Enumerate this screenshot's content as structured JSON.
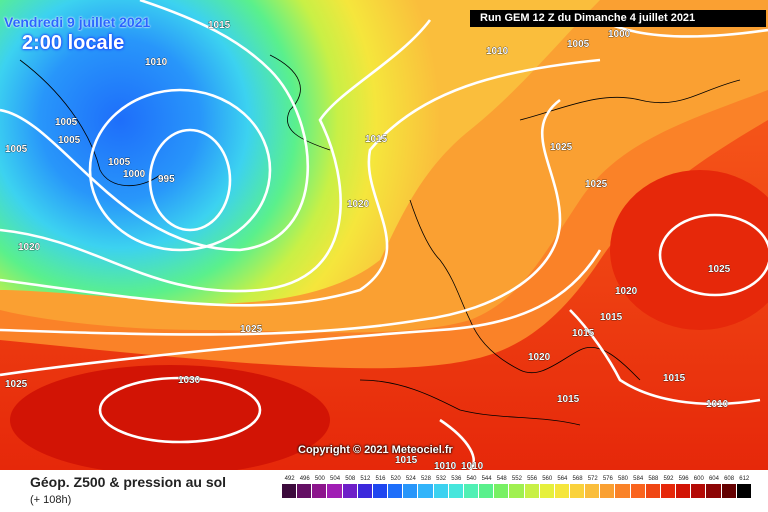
{
  "header": {
    "date": "Vendredi 9 juillet 2021",
    "time": "2:00 locale",
    "run": "Run GEM 12 Z du Dimanche 4 juillet 2021"
  },
  "copyright": "Copyright © 2021 Meteociel.fr",
  "footer": {
    "title": "Géop. Z500 & pression au sol",
    "subtitle": "(+ 108h)"
  },
  "colors": {
    "background": "#ffffff",
    "banner": "#000000",
    "title_blue": "#2a66ff",
    "isobar": "#ffffff",
    "coast": "#000000"
  },
  "isobar_labels": [
    "1015",
    "1010",
    "1005",
    "1005",
    "1005",
    "1005",
    "1000",
    "995",
    "1015",
    "1020",
    "1020",
    "1025",
    "1025",
    "1030",
    "1000",
    "1005",
    "1010",
    "1025",
    "1025",
    "1025",
    "1020",
    "1015",
    "1020",
    "1015",
    "1015",
    "1010",
    "1015",
    "1015",
    "1010",
    "1010"
  ],
  "legend": {
    "labels": [
      "492",
      "496",
      "500",
      "504",
      "508",
      "512",
      "516",
      "520",
      "524",
      "528",
      "532",
      "536",
      "540",
      "544",
      "548",
      "552",
      "556",
      "560",
      "564",
      "568",
      "572",
      "576",
      "580",
      "584",
      "588",
      "592",
      "596",
      "600",
      "604",
      "608",
      "612"
    ],
    "colors": [
      "#3c0a3c",
      "#640f64",
      "#8c148c",
      "#a01eb4",
      "#6e1ec8",
      "#3c28dc",
      "#1e46f0",
      "#1e6efa",
      "#2896fa",
      "#32b4fa",
      "#3cd2f0",
      "#46e6dc",
      "#50f0b4",
      "#5af08c",
      "#78f064",
      "#a0f050",
      "#c8f046",
      "#e6f03c",
      "#f5e63c",
      "#fad23c",
      "#fabe3c",
      "#faa032",
      "#fa8228",
      "#fa641e",
      "#f04614",
      "#e6280a",
      "#d21405",
      "#b40a05",
      "#8c0505",
      "#640000",
      "#000000"
    ]
  }
}
